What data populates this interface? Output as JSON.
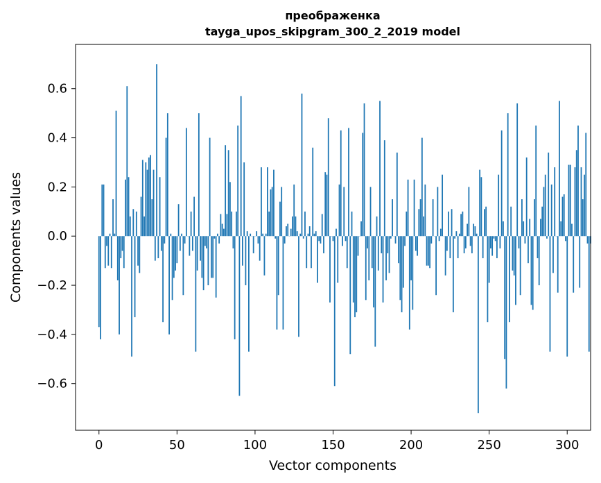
{
  "chart_data": {
    "type": "bar",
    "title_line1": "преображенка",
    "title_line2": "tayga_upos_skipgram_300_2_2019 model",
    "xlabel": "Vector components",
    "ylabel": "Components values",
    "xlim": [
      -15,
      315
    ],
    "ylim": [
      -0.79,
      0.78
    ],
    "xticks": [
      0,
      50,
      100,
      150,
      200,
      250,
      300
    ],
    "xtick_labels": [
      "0",
      "50",
      "100",
      "150",
      "200",
      "250",
      "300"
    ],
    "yticks": [
      -0.6,
      -0.4,
      -0.2,
      0.0,
      0.2,
      0.4,
      0.6
    ],
    "ytick_labels": [
      "−0.6",
      "−0.4",
      "−0.2",
      "0.0",
      "0.2",
      "0.4",
      "0.6"
    ],
    "bar_color": "#1f77b4",
    "values": [
      -0.37,
      -0.42,
      0.21,
      0.21,
      -0.13,
      -0.04,
      -0.12,
      0.01,
      -0.13,
      0.15,
      0.01,
      0.51,
      -0.18,
      -0.4,
      -0.09,
      -0.06,
      -0.13,
      0.23,
      0.61,
      0.24,
      0.08,
      -0.49,
      0.11,
      -0.33,
      0.1,
      -0.12,
      -0.15,
      0.16,
      0.31,
      0.08,
      0.3,
      0.27,
      0.32,
      0.33,
      0.15,
      0.27,
      -0.1,
      0.7,
      -0.09,
      0.24,
      -0.06,
      -0.35,
      -0.03,
      0.4,
      0.5,
      -0.4,
      0.01,
      -0.26,
      -0.17,
      -0.14,
      -0.11,
      0.13,
      -0.06,
      0.01,
      -0.24,
      -0.03,
      0.44,
      0.0,
      -0.08,
      0.1,
      -0.06,
      0.16,
      -0.47,
      -0.14,
      0.5,
      -0.1,
      -0.17,
      -0.22,
      -0.04,
      -0.05,
      -0.2,
      0.4,
      -0.17,
      -0.17,
      -0.01,
      -0.25,
      0.01,
      -0.03,
      0.09,
      0.05,
      0.03,
      0.37,
      0.09,
      0.35,
      0.22,
      0.1,
      -0.05,
      -0.42,
      0.1,
      0.45,
      -0.65,
      0.57,
      -0.12,
      0.3,
      -0.2,
      0.02,
      -0.47,
      0.01,
      0.0,
      -0.07,
      0.0,
      0.02,
      -0.03,
      -0.1,
      0.28,
      0.01,
      -0.16,
      0.01,
      0.28,
      0.1,
      0.19,
      0.2,
      0.27,
      -0.01,
      -0.38,
      -0.24,
      0.14,
      0.2,
      -0.38,
      -0.03,
      0.04,
      0.05,
      0.0,
      0.03,
      0.08,
      0.21,
      0.08,
      0.02,
      -0.41,
      0.01,
      0.58,
      -0.01,
      0.1,
      -0.13,
      0.01,
      0.04,
      -0.13,
      0.36,
      0.01,
      0.02,
      -0.19,
      -0.02,
      -0.03,
      0.09,
      -0.07,
      0.26,
      0.25,
      0.48,
      -0.27,
      0.0,
      -0.02,
      -0.61,
      0.03,
      -0.19,
      0.21,
      0.43,
      -0.04,
      0.2,
      -0.02,
      -0.13,
      0.44,
      -0.48,
      0.1,
      -0.27,
      -0.33,
      -0.31,
      -0.08,
      0.0,
      0.06,
      0.42,
      0.54,
      -0.26,
      -0.05,
      -0.18,
      0.2,
      -0.13,
      -0.29,
      -0.45,
      0.08,
      -0.14,
      0.55,
      -0.07,
      -0.27,
      0.39,
      -0.18,
      -0.07,
      -0.15,
      -0.01,
      0.15,
      0.0,
      -0.03,
      0.34,
      -0.11,
      -0.26,
      -0.31,
      -0.21,
      -0.04,
      0.1,
      0.23,
      -0.38,
      -0.18,
      -0.3,
      0.23,
      -0.06,
      -0.08,
      0.11,
      0.15,
      0.4,
      0.08,
      0.21,
      -0.12,
      -0.12,
      -0.13,
      -0.03,
      0.15,
      0.0,
      -0.24,
      0.2,
      -0.02,
      0.03,
      0.25,
      0.0,
      -0.16,
      -0.06,
      0.1,
      -0.09,
      0.11,
      -0.31,
      -0.01,
      0.02,
      -0.09,
      0.01,
      0.09,
      0.1,
      -0.07,
      -0.05,
      0.05,
      0.2,
      -0.04,
      -0.07,
      0.05,
      0.04,
      0.01,
      -0.72,
      0.27,
      0.24,
      -0.09,
      0.11,
      0.12,
      -0.35,
      -0.19,
      -0.05,
      -0.08,
      -0.01,
      -0.02,
      -0.09,
      0.25,
      -0.05,
      0.43,
      0.06,
      -0.5,
      -0.62,
      0.5,
      -0.35,
      0.12,
      -0.14,
      -0.16,
      -0.28,
      0.54,
      -0.05,
      -0.24,
      0.15,
      0.06,
      -0.03,
      0.32,
      -0.11,
      0.07,
      -0.28,
      -0.3,
      0.15,
      0.45,
      -0.09,
      -0.2,
      0.07,
      0.12,
      0.2,
      0.25,
      -0.01,
      0.34,
      -0.47,
      0.21,
      -0.15,
      0.28,
      0.0,
      -0.23,
      0.55,
      0.06,
      0.16,
      0.17,
      -0.02,
      -0.49,
      0.29,
      0.29,
      0.05,
      -0.23,
      0.28,
      0.35,
      0.45,
      -0.21,
      0.28,
      0.15,
      0.25,
      0.42,
      -0.03,
      -0.47,
      -0.03
    ]
  }
}
